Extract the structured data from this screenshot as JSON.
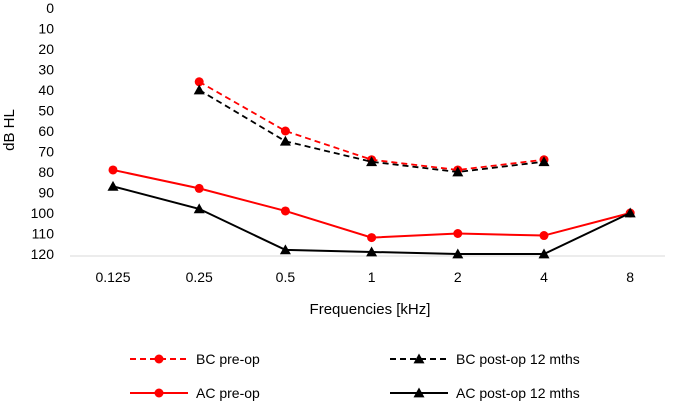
{
  "chart_data": {
    "type": "line",
    "title": "",
    "xlabel": "Frequencies [kHz]",
    "ylabel": "dB HL",
    "ylim": [
      0,
      120
    ],
    "y_reversed": true,
    "y_ticks": [
      0,
      10,
      20,
      30,
      40,
      50,
      60,
      70,
      80,
      90,
      100,
      110,
      120
    ],
    "categories": [
      "0.125",
      "0.25",
      "0.5",
      "1",
      "2",
      "4",
      "8"
    ],
    "grid": false,
    "legend_position": "bottom",
    "series": [
      {
        "name": "BC pre-op",
        "color": "#ff0000",
        "dash": true,
        "marker": "circle",
        "values": [
          null,
          36,
          60,
          74,
          79,
          74,
          null
        ]
      },
      {
        "name": "BC post-op 12 mths",
        "color": "#000000",
        "dash": true,
        "marker": "triangle",
        "values": [
          null,
          40,
          65,
          75,
          80,
          75,
          null
        ]
      },
      {
        "name": "AC pre-op",
        "color": "#ff0000",
        "dash": false,
        "marker": "circle",
        "values": [
          79,
          88,
          99,
          112,
          110,
          111,
          100
        ]
      },
      {
        "name": "AC post-op 12 mths",
        "color": "#000000",
        "dash": false,
        "marker": "triangle",
        "values": [
          87,
          98,
          118,
          119,
          120,
          120,
          100
        ]
      }
    ]
  }
}
